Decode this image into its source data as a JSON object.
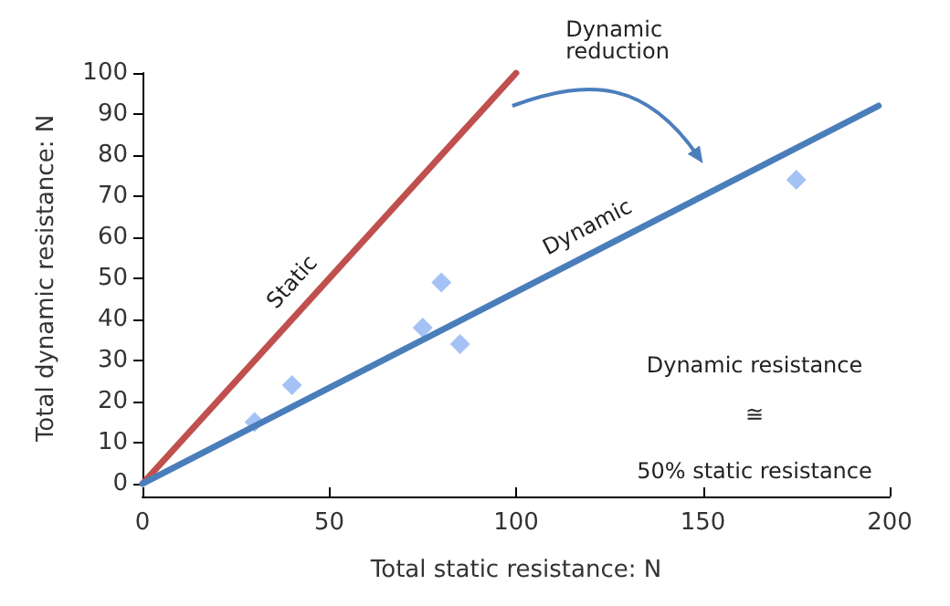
{
  "chart_data": {
    "type": "line",
    "xlabel": "Total static resistance: N",
    "ylabel": "Total dynamic resistance: N",
    "xlim": [
      0,
      200
    ],
    "xticks": [
      0,
      50,
      100,
      150,
      200
    ],
    "ylim": [
      0,
      100
    ],
    "yticks": [
      0,
      10,
      20,
      30,
      40,
      50,
      60,
      70,
      80,
      90,
      100
    ],
    "grid": false,
    "legend": false,
    "series": [
      {
        "name": "Static",
        "color": "#c0504d",
        "x": [
          0,
          100
        ],
        "values": [
          0,
          100
        ],
        "marker": "none"
      },
      {
        "name": "Dynamic",
        "color": "#4a7ebb",
        "x": [
          0,
          197
        ],
        "values": [
          0,
          92
        ],
        "marker": "none"
      },
      {
        "type": "scatter",
        "color": "#8db3f2",
        "x": [
          30,
          40,
          75,
          80,
          85,
          175
        ],
        "values": [
          15,
          24,
          38,
          49,
          34,
          74
        ],
        "marker": "diamond"
      }
    ],
    "annotations": [
      "Dynamic reduction",
      "Dynamic resistance",
      "≅",
      "50% static resistance"
    ]
  }
}
